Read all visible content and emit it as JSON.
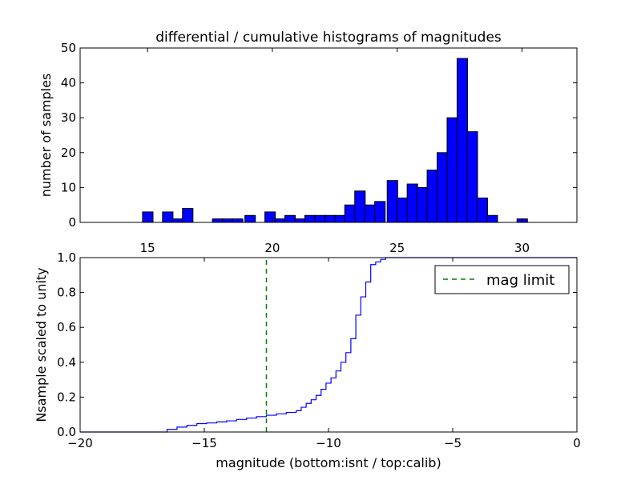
{
  "chart_data": [
    {
      "type": "bar",
      "title": "differential / cumulative histograms of magnitudes",
      "ylabel": "number of samples",
      "xlim": [
        12.3,
        32.2
      ],
      "ylim": [
        0,
        50
      ],
      "xticks": [
        "15",
        "20",
        "25",
        "30"
      ],
      "yticks": [
        "0",
        "10",
        "20",
        "30",
        "40",
        "50"
      ],
      "bar_color": "#0000ff",
      "bin_width": 0.42,
      "bins": [
        {
          "x": 14.8,
          "value": 3
        },
        {
          "x": 15.6,
          "value": 3
        },
        {
          "x": 16.0,
          "value": 1
        },
        {
          "x": 16.4,
          "value": 4
        },
        {
          "x": 17.6,
          "value": 1
        },
        {
          "x": 18.0,
          "value": 1
        },
        {
          "x": 18.4,
          "value": 1
        },
        {
          "x": 18.9,
          "value": 2
        },
        {
          "x": 19.7,
          "value": 3
        },
        {
          "x": 20.1,
          "value": 1
        },
        {
          "x": 20.5,
          "value": 2
        },
        {
          "x": 20.9,
          "value": 1
        },
        {
          "x": 21.3,
          "value": 2
        },
        {
          "x": 21.7,
          "value": 2
        },
        {
          "x": 22.1,
          "value": 2
        },
        {
          "x": 22.5,
          "value": 2
        },
        {
          "x": 22.9,
          "value": 5
        },
        {
          "x": 23.3,
          "value": 9
        },
        {
          "x": 23.7,
          "value": 5
        },
        {
          "x": 24.1,
          "value": 6
        },
        {
          "x": 24.6,
          "value": 12
        },
        {
          "x": 25.0,
          "value": 7
        },
        {
          "x": 25.4,
          "value": 11
        },
        {
          "x": 25.8,
          "value": 10
        },
        {
          "x": 26.2,
          "value": 15
        },
        {
          "x": 26.6,
          "value": 20
        },
        {
          "x": 27.0,
          "value": 30
        },
        {
          "x": 27.4,
          "value": 47
        },
        {
          "x": 27.8,
          "value": 26
        },
        {
          "x": 28.2,
          "value": 7
        },
        {
          "x": 28.6,
          "value": 2
        },
        {
          "x": 29.8,
          "value": 1
        }
      ]
    },
    {
      "type": "line",
      "xlabel": "magnitude (bottom:isnt / top:calib)",
      "ylabel": "Nsample scaled to unity",
      "xlim": [
        -20,
        0
      ],
      "ylim": [
        0,
        1.0
      ],
      "xticks": [
        "−20",
        "−15",
        "−10",
        "−5",
        "0"
      ],
      "yticks": [
        "0.0",
        "0.2",
        "0.4",
        "0.6",
        "0.8",
        "1.0"
      ],
      "series": [
        {
          "color": "#0000ff",
          "step": true,
          "x": [
            -20,
            -16.5,
            -16.1,
            -15.7,
            -15.3,
            -14.9,
            -14.5,
            -14.1,
            -13.7,
            -13.3,
            -12.9,
            -12.5,
            -12.1,
            -11.7,
            -11.3,
            -11.1,
            -10.9,
            -10.7,
            -10.5,
            -10.3,
            -10.1,
            -9.9,
            -9.7,
            -9.5,
            -9.3,
            -9.1,
            -8.9,
            -8.7,
            -8.5,
            -8.3,
            -8.1,
            -7.9,
            -7.7,
            -7.5,
            0
          ],
          "y": [
            0,
            0.015,
            0.028,
            0.038,
            0.048,
            0.052,
            0.058,
            0.064,
            0.072,
            0.08,
            0.088,
            0.096,
            0.104,
            0.112,
            0.122,
            0.142,
            0.164,
            0.185,
            0.21,
            0.245,
            0.28,
            0.31,
            0.35,
            0.4,
            0.455,
            0.535,
            0.67,
            0.775,
            0.86,
            0.96,
            0.975,
            0.99,
            1.0,
            1.0,
            1.0
          ]
        },
        {
          "name": "mag limit",
          "color": "#008000",
          "dashed": true,
          "x": [
            -12.5,
            -12.5
          ],
          "y": [
            0,
            1.0
          ]
        }
      ],
      "legend": {
        "position": "top-right",
        "entries": [
          "mag limit"
        ]
      }
    }
  ]
}
